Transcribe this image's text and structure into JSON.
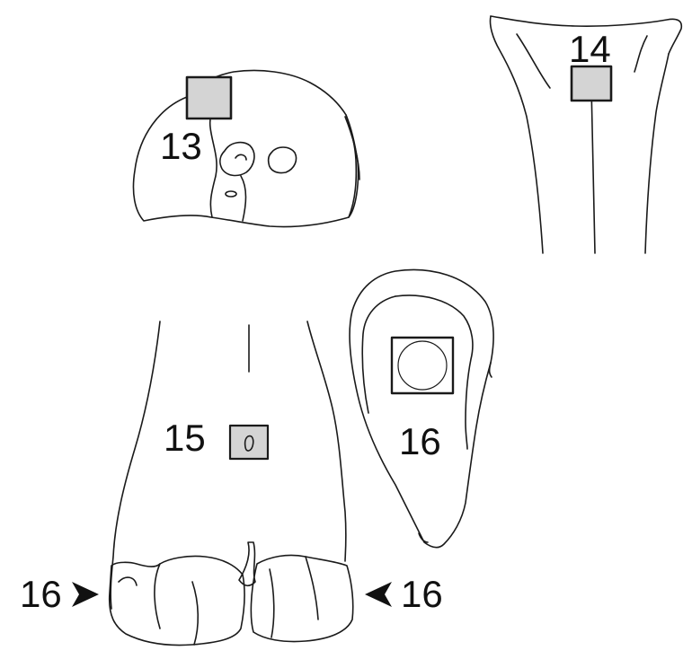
{
  "figure": {
    "labels": {
      "site_13": "13",
      "site_14": "14",
      "site_15": "15",
      "site_16_center": "16",
      "site_16_left": "16",
      "site_16_right": "16"
    },
    "colors": {
      "outline": "#1a1a1a",
      "marker_fill": "#d4d4d4",
      "arrow": "#111111",
      "background": "#ffffff"
    }
  }
}
